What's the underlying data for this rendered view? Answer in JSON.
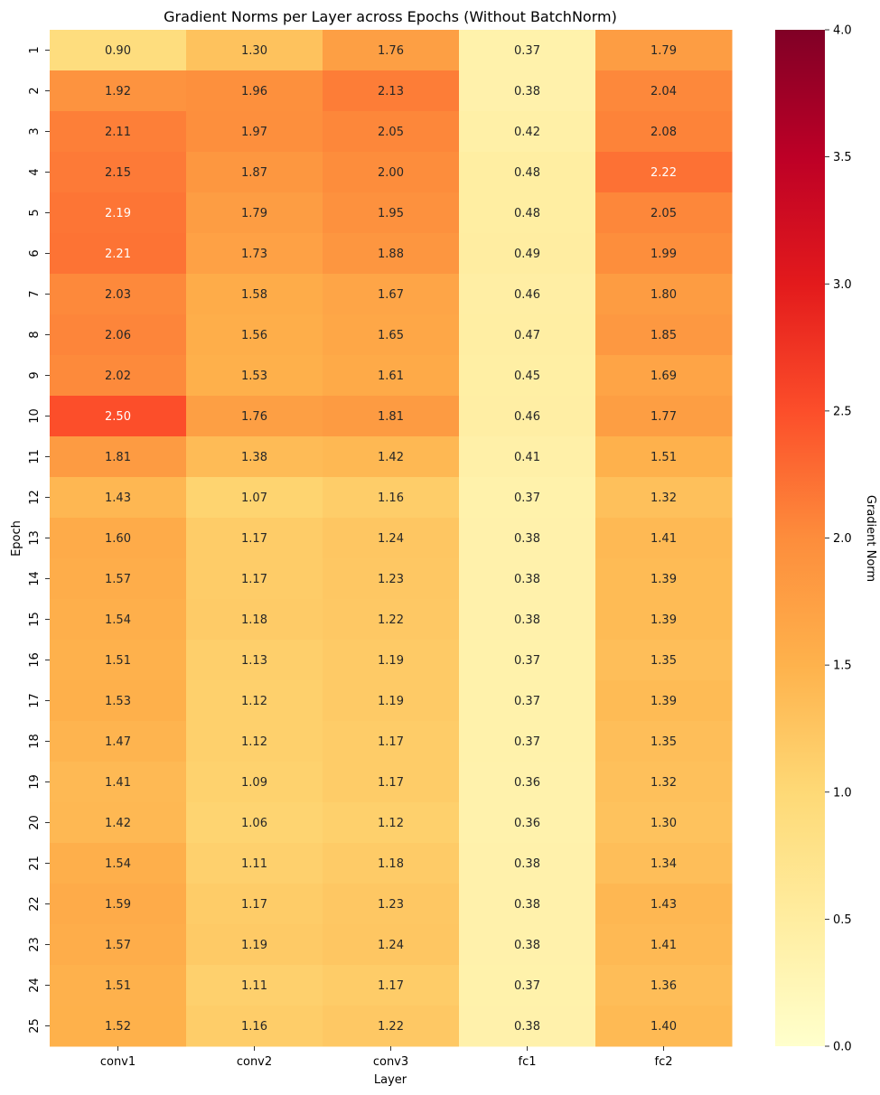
{
  "chart_data": {
    "type": "heatmap",
    "title": "Gradient Norms per Layer across Epochs (Without BatchNorm)",
    "xlabel": "Layer",
    "ylabel": "Epoch",
    "columns": [
      "conv1",
      "conv2",
      "conv3",
      "fc1",
      "fc2"
    ],
    "rows": [
      "1",
      "2",
      "3",
      "4",
      "5",
      "6",
      "7",
      "8",
      "9",
      "10",
      "11",
      "12",
      "13",
      "14",
      "15",
      "16",
      "17",
      "18",
      "19",
      "20",
      "21",
      "22",
      "23",
      "24",
      "25"
    ],
    "values": [
      [
        0.9,
        1.3,
        1.76,
        0.37,
        1.79
      ],
      [
        1.92,
        1.96,
        2.13,
        0.38,
        2.04
      ],
      [
        2.11,
        1.97,
        2.05,
        0.42,
        2.08
      ],
      [
        2.15,
        1.87,
        2.0,
        0.48,
        2.22
      ],
      [
        2.19,
        1.79,
        1.95,
        0.48,
        2.05
      ],
      [
        2.21,
        1.73,
        1.88,
        0.49,
        1.99
      ],
      [
        2.03,
        1.58,
        1.67,
        0.46,
        1.8
      ],
      [
        2.06,
        1.56,
        1.65,
        0.47,
        1.85
      ],
      [
        2.02,
        1.53,
        1.61,
        0.45,
        1.69
      ],
      [
        2.5,
        1.76,
        1.81,
        0.46,
        1.77
      ],
      [
        1.81,
        1.38,
        1.42,
        0.41,
        1.51
      ],
      [
        1.43,
        1.07,
        1.16,
        0.37,
        1.32
      ],
      [
        1.6,
        1.17,
        1.24,
        0.38,
        1.41
      ],
      [
        1.57,
        1.17,
        1.23,
        0.38,
        1.39
      ],
      [
        1.54,
        1.18,
        1.22,
        0.38,
        1.39
      ],
      [
        1.51,
        1.13,
        1.19,
        0.37,
        1.35
      ],
      [
        1.53,
        1.12,
        1.19,
        0.37,
        1.39
      ],
      [
        1.47,
        1.12,
        1.17,
        0.37,
        1.35
      ],
      [
        1.41,
        1.09,
        1.17,
        0.36,
        1.32
      ],
      [
        1.42,
        1.06,
        1.12,
        0.36,
        1.3
      ],
      [
        1.54,
        1.11,
        1.18,
        0.38,
        1.34
      ],
      [
        1.59,
        1.17,
        1.23,
        0.38,
        1.43
      ],
      [
        1.57,
        1.19,
        1.24,
        0.38,
        1.41
      ],
      [
        1.51,
        1.11,
        1.17,
        0.37,
        1.36
      ],
      [
        1.52,
        1.16,
        1.22,
        0.38,
        1.4
      ]
    ],
    "colorbar": {
      "label": "Gradient Norm",
      "range": [
        0.0,
        4.0
      ],
      "ticks": [
        "0.0",
        "0.5",
        "1.0",
        "1.5",
        "2.0",
        "2.5",
        "3.0",
        "3.5",
        "4.0"
      ],
      "colormap": "YlOrRd",
      "stops": [
        "#ffffcc",
        "#ffeda0",
        "#fed976",
        "#feb24c",
        "#fd8d3c",
        "#fc4e2a",
        "#e31a1c",
        "#bd0026",
        "#800026"
      ]
    },
    "annotation_colors": {
      "dark": "#262626",
      "light": "#ffffff"
    }
  }
}
